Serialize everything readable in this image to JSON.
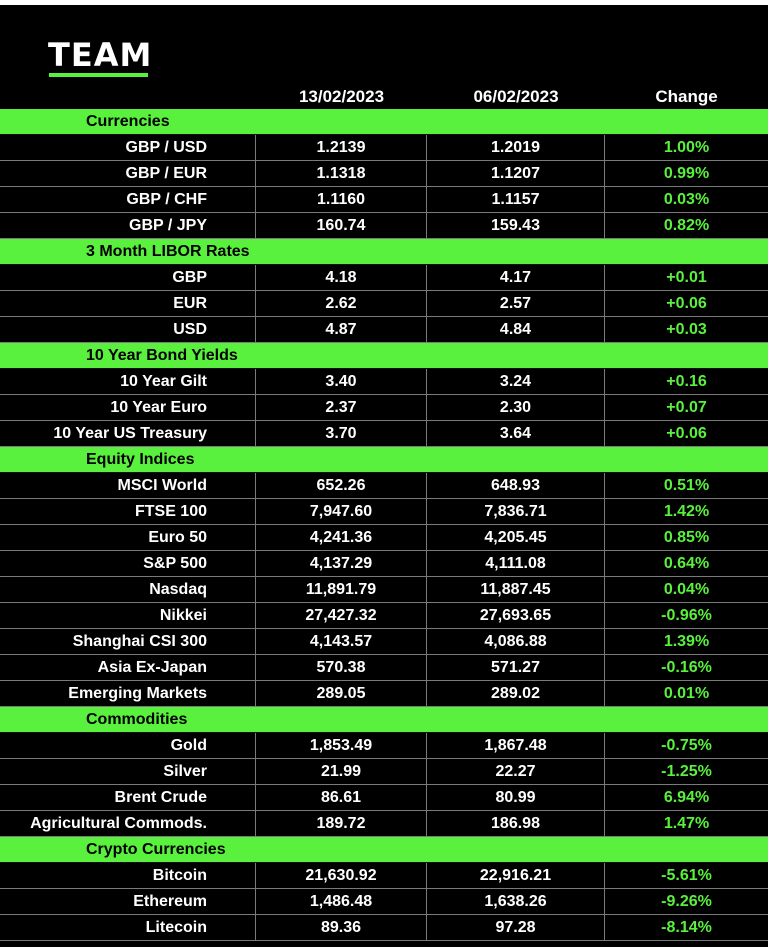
{
  "brand": {
    "logo_text": "TEAM"
  },
  "header": {
    "col1": "13/02/2023",
    "col2": "06/02/2023",
    "col3": "Change"
  },
  "sections": [
    {
      "title": "Currencies",
      "rows": [
        {
          "name": "GBP / USD",
          "v1": "1.2139",
          "v2": "1.2019",
          "change": "1.00%"
        },
        {
          "name": "GBP / EUR",
          "v1": "1.1318",
          "v2": "1.1207",
          "change": "0.99%"
        },
        {
          "name": "GBP / CHF",
          "v1": "1.1160",
          "v2": "1.1157",
          "change": "0.03%"
        },
        {
          "name": "GBP / JPY",
          "v1": "160.74",
          "v2": "159.43",
          "change": "0.82%"
        }
      ]
    },
    {
      "title": "3 Month LIBOR Rates",
      "rows": [
        {
          "name": "GBP",
          "v1": "4.18",
          "v2": "4.17",
          "change": "+0.01"
        },
        {
          "name": "EUR",
          "v1": "2.62",
          "v2": "2.57",
          "change": "+0.06"
        },
        {
          "name": "USD",
          "v1": "4.87",
          "v2": "4.84",
          "change": "+0.03"
        }
      ]
    },
    {
      "title": "10 Year Bond Yields",
      "rows": [
        {
          "name": "10 Year Gilt",
          "v1": "3.40",
          "v2": "3.24",
          "change": "+0.16"
        },
        {
          "name": "10 Year Euro",
          "v1": "2.37",
          "v2": "2.30",
          "change": "+0.07"
        },
        {
          "name": "10 Year US Treasury",
          "v1": "3.70",
          "v2": "3.64",
          "change": "+0.06"
        }
      ]
    },
    {
      "title": "Equity Indices",
      "rows": [
        {
          "name": "MSCI World",
          "v1": "652.26",
          "v2": "648.93",
          "change": "0.51%"
        },
        {
          "name": "FTSE 100",
          "v1": "7,947.60",
          "v2": "7,836.71",
          "change": "1.42%"
        },
        {
          "name": "Euro 50",
          "v1": "4,241.36",
          "v2": "4,205.45",
          "change": "0.85%"
        },
        {
          "name": "S&P 500",
          "v1": "4,137.29",
          "v2": "4,111.08",
          "change": "0.64%"
        },
        {
          "name": "Nasdaq",
          "v1": "11,891.79",
          "v2": "11,887.45",
          "change": "0.04%"
        },
        {
          "name": "Nikkei",
          "v1": "27,427.32",
          "v2": "27,693.65",
          "change": "-0.96%"
        },
        {
          "name": "Shanghai CSI 300",
          "v1": "4,143.57",
          "v2": "4,086.88",
          "change": "1.39%"
        },
        {
          "name": "Asia Ex-Japan",
          "v1": "570.38",
          "v2": "571.27",
          "change": "-0.16%"
        },
        {
          "name": "Emerging Markets",
          "v1": "289.05",
          "v2": "289.02",
          "change": "0.01%"
        }
      ]
    },
    {
      "title": "Commodities",
      "rows": [
        {
          "name": "Gold",
          "v1": "1,853.49",
          "v2": "1,867.48",
          "change": "-0.75%"
        },
        {
          "name": "Silver",
          "v1": "21.99",
          "v2": "22.27",
          "change": "-1.25%"
        },
        {
          "name": "Brent Crude",
          "v1": "86.61",
          "v2": "80.99",
          "change": "6.94%"
        },
        {
          "name": "Agricultural Commods.",
          "v1": "189.72",
          "v2": "186.98",
          "change": "1.47%"
        }
      ]
    },
    {
      "title": "Crypto Currencies",
      "rows": [
        {
          "name": "Bitcoin",
          "v1": "21,630.92",
          "v2": "22,916.21",
          "change": "-5.61%"
        },
        {
          "name": "Ethereum",
          "v1": "1,486.48",
          "v2": "1,638.26",
          "change": "-9.26%"
        },
        {
          "name": "Litecoin",
          "v1": "89.36",
          "v2": "97.28",
          "change": "-8.14%"
        }
      ]
    }
  ],
  "colors": {
    "accent_green": "#59f13d",
    "background": "#000000",
    "text": "#ffffff"
  }
}
